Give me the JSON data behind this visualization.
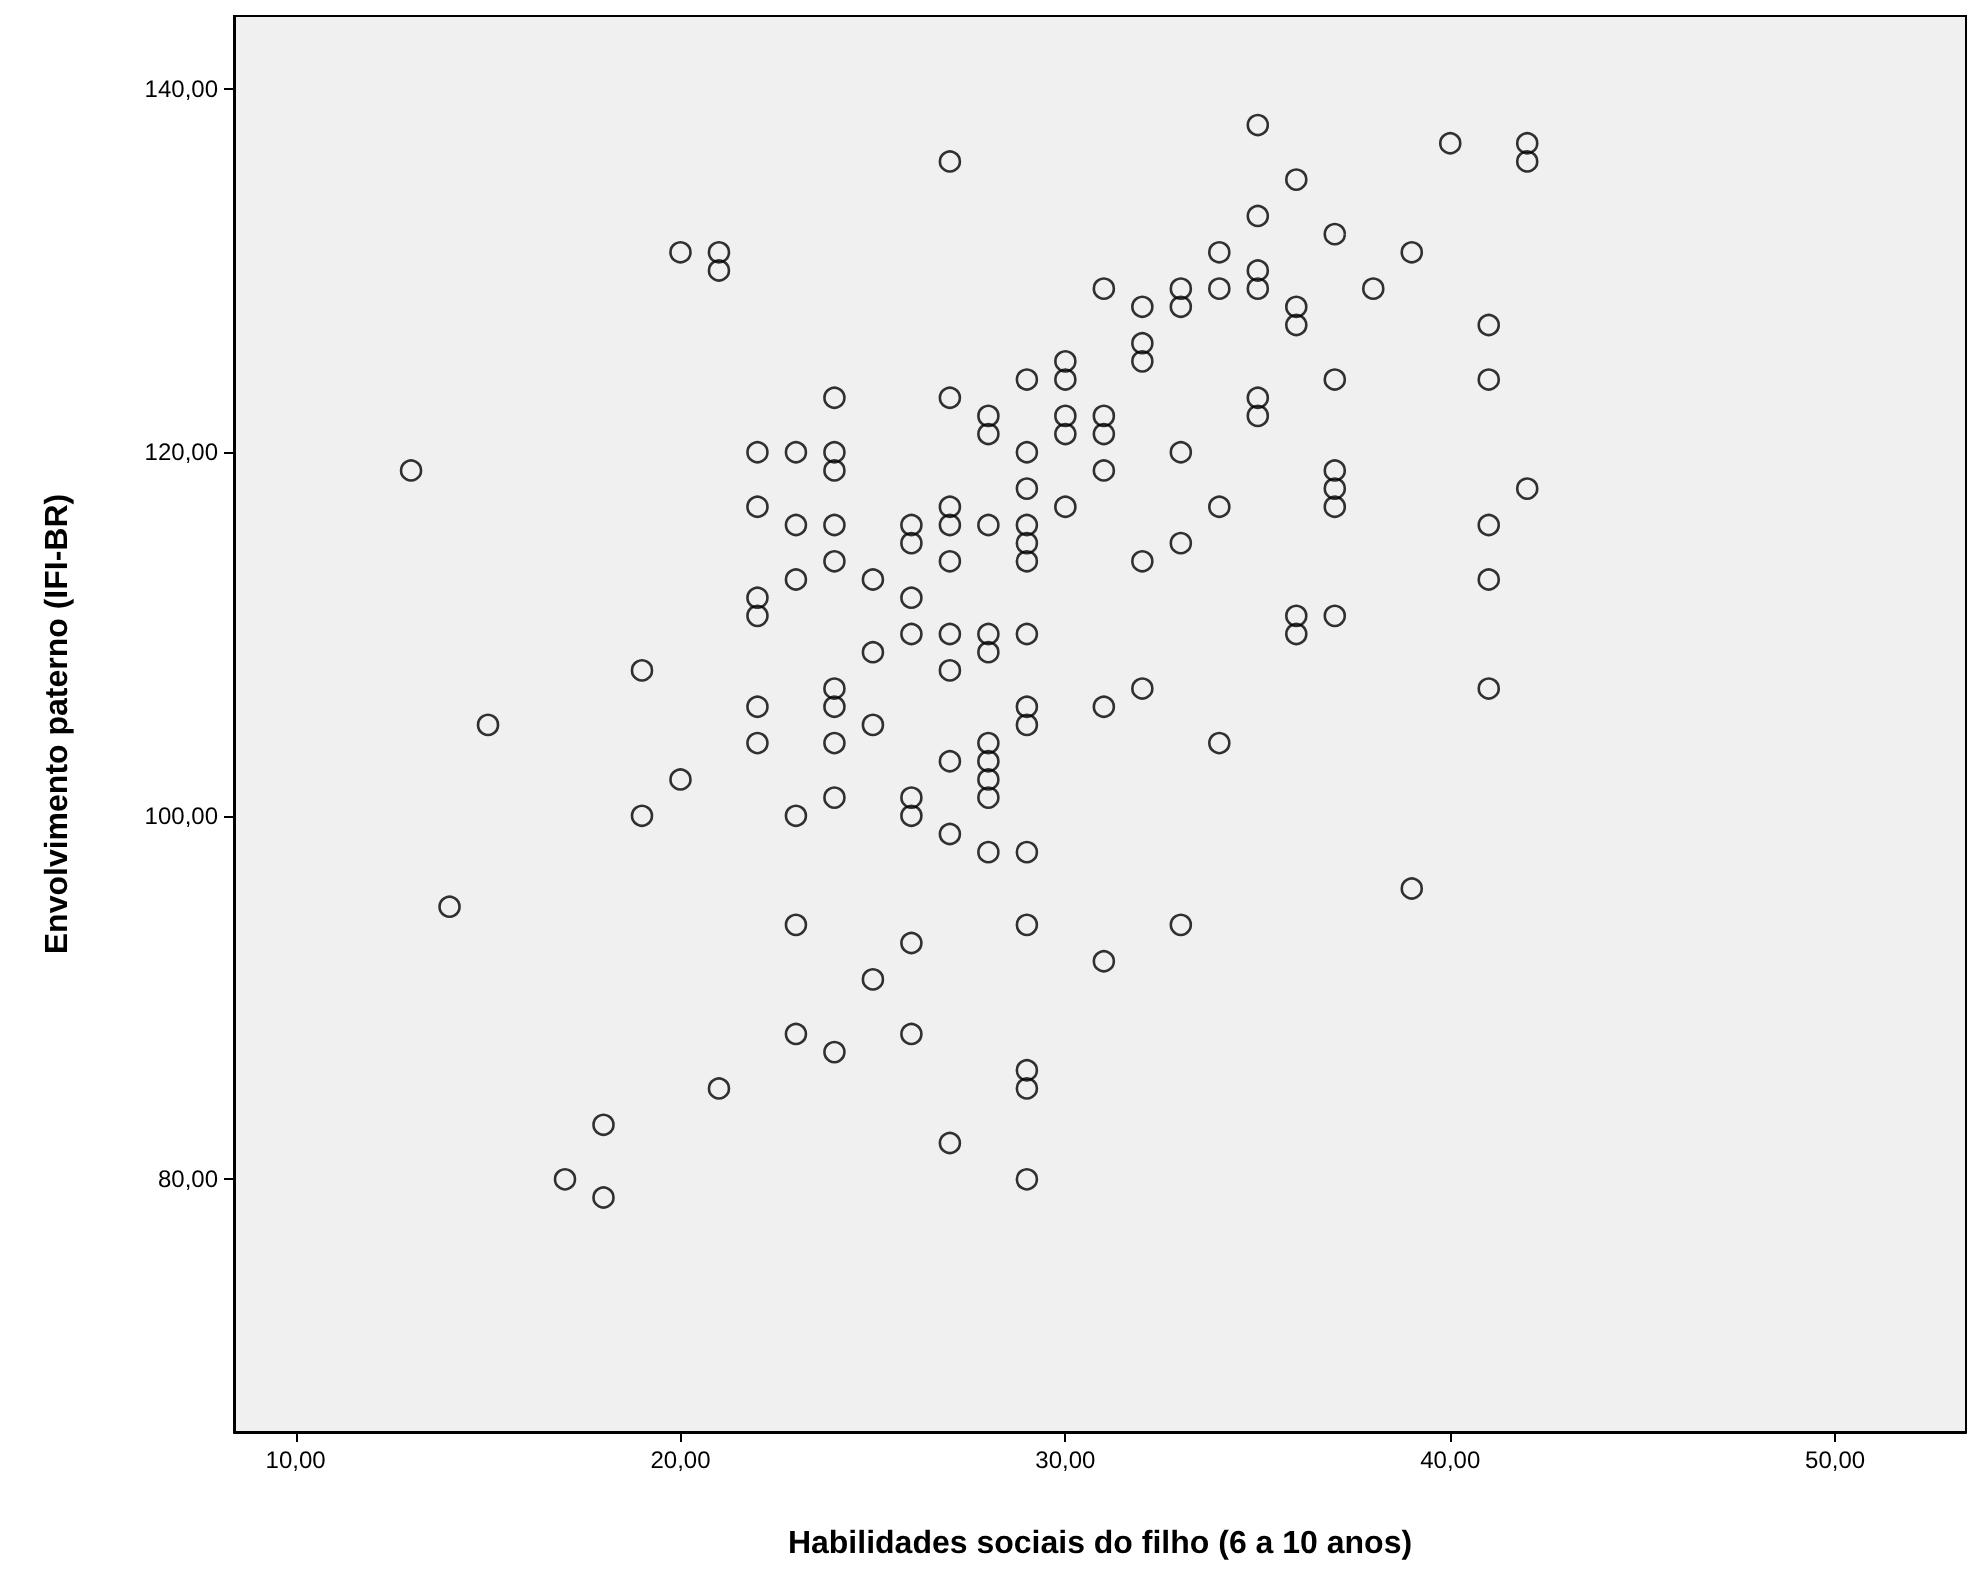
{
  "chart_data": {
    "type": "scatter",
    "xlabel": "Habilidades sociais do filho (6 a 10 anos)",
    "ylabel": "Envolvimento paterno (IFI-BR)",
    "x": [
      13,
      14,
      15,
      17,
      18,
      18,
      19,
      19,
      20,
      20,
      21,
      21,
      21,
      22,
      22,
      22,
      22,
      22,
      22,
      23,
      23,
      23,
      23,
      23,
      23,
      24,
      24,
      24,
      24,
      24,
      24,
      24,
      24,
      24,
      24,
      25,
      25,
      25,
      25,
      26,
      26,
      26,
      26,
      26,
      26,
      26,
      26,
      27,
      27,
      27,
      27,
      27,
      27,
      27,
      27,
      27,
      27,
      28,
      28,
      28,
      28,
      28,
      28,
      28,
      28,
      28,
      28,
      29,
      29,
      29,
      29,
      29,
      29,
      29,
      29,
      29,
      29,
      29,
      29,
      29,
      29,
      30,
      30,
      30,
      30,
      30,
      31,
      31,
      31,
      31,
      31,
      31,
      32,
      32,
      32,
      32,
      32,
      33,
      33,
      33,
      33,
      33,
      34,
      34,
      34,
      34,
      35,
      35,
      35,
      35,
      35,
      35,
      36,
      36,
      36,
      36,
      36,
      37,
      37,
      37,
      37,
      37,
      37,
      38,
      39,
      39,
      40,
      41,
      41,
      41,
      41,
      41,
      42,
      42,
      42
    ],
    "values": [
      119,
      95,
      105,
      80,
      83,
      79,
      108,
      100,
      131,
      102,
      131,
      130,
      85,
      120,
      117,
      112,
      111,
      106,
      104,
      120,
      116,
      113,
      100,
      94,
      88,
      123,
      120,
      119,
      116,
      114,
      107,
      106,
      104,
      101,
      87,
      113,
      109,
      105,
      91,
      116,
      115,
      112,
      110,
      101,
      100,
      93,
      88,
      136,
      123,
      117,
      116,
      114,
      110,
      108,
      103,
      99,
      82,
      122,
      121,
      116,
      110,
      109,
      104,
      103,
      102,
      101,
      98,
      124,
      120,
      118,
      116,
      115,
      114,
      110,
      106,
      105,
      98,
      94,
      86,
      85,
      80,
      125,
      124,
      122,
      121,
      117,
      129,
      122,
      121,
      119,
      106,
      92,
      128,
      126,
      125,
      114,
      107,
      129,
      128,
      120,
      115,
      94,
      131,
      129,
      117,
      104,
      138,
      133,
      130,
      129,
      123,
      122,
      135,
      128,
      127,
      111,
      110,
      132,
      124,
      119,
      118,
      117,
      111,
      129,
      131,
      96,
      137,
      127,
      124,
      116,
      113,
      107,
      137,
      136,
      118
    ],
    "color": "#000000",
    "marker": "circle",
    "grid": false,
    "xlim": [
      8.4,
      53.4
    ],
    "ylim": [
      66.1,
      144
    ],
    "xticks": [
      {
        "value": 10,
        "label": "10,00"
      },
      {
        "value": 20,
        "label": "20,00"
      },
      {
        "value": 30,
        "label": "30,00"
      },
      {
        "value": 40,
        "label": "40,00"
      },
      {
        "value": 50,
        "label": "50,00"
      }
    ],
    "yticks": [
      {
        "value": 80,
        "label": "80,00"
      },
      {
        "value": 100,
        "label": "100,00"
      },
      {
        "value": 120,
        "label": "120,00"
      },
      {
        "value": 140,
        "label": "140,00"
      }
    ]
  }
}
